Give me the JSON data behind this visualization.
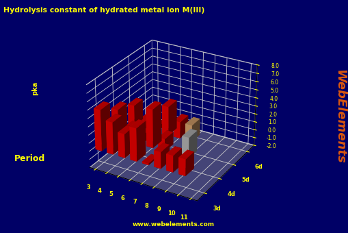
{
  "title": "Hydrolysis constant of hydrated metal ion M(III)",
  "ylabel": "pka",
  "period_label": "Period",
  "website": "www.webelements.com",
  "webelements_text": "WebElements",
  "bg_color": "#000066",
  "title_color": "#ffff00",
  "label_color": "#ffff00",
  "tick_color": "#ffff00",
  "website_color": "#ffff00",
  "we_color": "#ff6600",
  "floor_color": "#888888",
  "wall_color": "#000066",
  "grid_color": "#cccccc",
  "ylim": [
    -2.0,
    8.0
  ],
  "yticks": [
    -2.0,
    -1.0,
    0.0,
    1.0,
    2.0,
    3.0,
    4.0,
    5.0,
    6.0,
    7.0,
    8.0
  ],
  "periods": [
    "3d",
    "4d",
    "5d",
    "6d"
  ],
  "groups": [
    "3",
    "4",
    "5",
    "6",
    "7",
    "8",
    "9",
    "10",
    "11"
  ],
  "values": [
    [
      5.0,
      3.9,
      2.9,
      4.0,
      0.2,
      2.0,
      2.0,
      2.0,
      null
    ],
    [
      3.5,
      1.5,
      1.0,
      4.7,
      1.5,
      null,
      2.5,
      null,
      null
    ],
    [
      2.5,
      1.0,
      0.5,
      3.5,
      2.0,
      2.0,
      null,
      null,
      null
    ],
    [
      null,
      null,
      null,
      null,
      null,
      null,
      null,
      null,
      null
    ]
  ],
  "colors": [
    [
      "#dd0000",
      "#dd0000",
      "#dd0000",
      "#dd0000",
      "#dd0000",
      "#dd0000",
      "#dd0000",
      "#dd0000",
      null
    ],
    [
      "#dd0000",
      "#dd0000",
      "#dd0000",
      "#dd0000",
      "#dd0000",
      null,
      "#aaaaaa",
      null,
      null
    ],
    [
      "#dd0000",
      "#dd0000",
      "#dd0000",
      "#dd0000",
      "#dd0000",
      "#cc9966",
      null,
      "#cccccc",
      "#999999"
    ],
    [
      null,
      null,
      null,
      null,
      null,
      "#dddd88",
      "#bbbbbb",
      null,
      null
    ]
  ],
  "elev": 28,
  "azim": -60
}
